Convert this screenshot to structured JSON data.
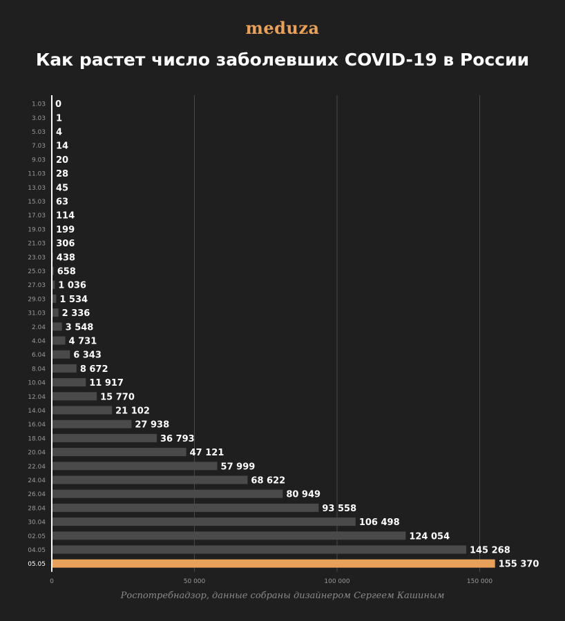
{
  "logo_text": "meduza",
  "title": "Как растет число заболевших COVID-19 в России",
  "source": "Роспотребнадзор, данные собраны дизайнером Сергеем Кашиным",
  "colors": {
    "background": "#1f1f1f",
    "bar": "#4a4a4a",
    "highlight": "#e8a15b",
    "logo": "#e8a15b",
    "grid": "#4a4a4a",
    "axis": "#ffffff",
    "tick": "#9a9a9a"
  },
  "chart_data": {
    "type": "bar",
    "orientation": "horizontal",
    "categories": [
      "1.03",
      "3.03",
      "5.03",
      "7.03",
      "9.03",
      "11.03",
      "13.03",
      "15.03",
      "17.03",
      "19.03",
      "21.03",
      "23.03",
      "25.03",
      "27.03",
      "29.03",
      "31.03",
      "2.04",
      "4.04",
      "6.04",
      "8.04",
      "10.04",
      "12.04",
      "14.04",
      "16.04",
      "18.04",
      "20.04",
      "22.04",
      "24.04",
      "26.04",
      "28.04",
      "30.04",
      "02.05",
      "04.05",
      "05.05"
    ],
    "values": [
      0,
      1,
      4,
      14,
      20,
      28,
      45,
      63,
      114,
      199,
      306,
      438,
      658,
      1036,
      1534,
      2336,
      3548,
      4731,
      6343,
      8672,
      11917,
      15770,
      21102,
      27938,
      36793,
      47121,
      57999,
      68622,
      80949,
      93558,
      106498,
      124054,
      145268,
      155370
    ],
    "value_labels": [
      "0",
      "1",
      "4",
      "14",
      "20",
      "28",
      "45",
      "63",
      "114",
      "199",
      "306",
      "438",
      "658",
      "1 036",
      "1 534",
      "2 336",
      "3 548",
      "4 731",
      "6 343",
      "8 672",
      "11 917",
      "15 770",
      "21 102",
      "27 938",
      "36 793",
      "47 121",
      "57 999",
      "68 622",
      "80 949",
      "93 558",
      "106 498",
      "124 054",
      "145 268",
      "155 370"
    ],
    "highlight_index": 33,
    "xlim": [
      0,
      155370
    ],
    "x_ticks": [
      0,
      50000,
      100000,
      150000
    ],
    "x_tick_labels": [
      "0",
      "50 000",
      "100 000",
      "150 000"
    ],
    "grid": true
  }
}
